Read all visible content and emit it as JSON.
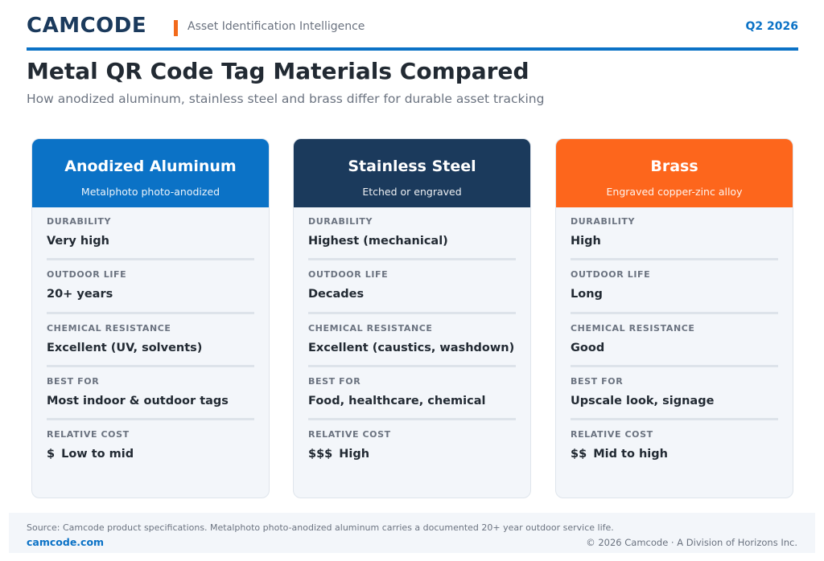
{
  "header": {
    "brand": "CAMCODE",
    "tagline": "Asset Identification Intelligence",
    "quarter": "Q2 2026",
    "accent_color": "#0b72c6",
    "brand_color": "#1b3a5c",
    "bar_color": "#f26a1b"
  },
  "page": {
    "title": "Metal QR Code Tag Materials Compared",
    "subtitle": "How anodized aluminum, stainless steel and brass differ for durable asset tracking"
  },
  "labels": {
    "durability": "DURABILITY",
    "outdoor_life": "OUTDOOR LIFE",
    "chemical_resistance": "CHEMICAL RESISTANCE",
    "best_for": "BEST FOR",
    "relative_cost": "RELATIVE COST"
  },
  "cards": [
    {
      "title": "Anodized Aluminum",
      "subtitle": "Metalphoto photo-anodized",
      "color": "#0b72c6",
      "durability": "Very high",
      "outdoor_life": "20+ years",
      "chemical_resistance": "Excellent (UV, solvents)",
      "best_for": "Most indoor & outdoor tags",
      "cost_symbol": "$",
      "cost_text": "Low to mid"
    },
    {
      "title": "Stainless Steel",
      "subtitle": "Etched or engraved",
      "color": "#1b3a5c",
      "durability": "Highest (mechanical)",
      "outdoor_life": "Decades",
      "chemical_resistance": "Excellent (caustics, washdown)",
      "best_for": "Food, healthcare, chemical",
      "cost_symbol": "$$$",
      "cost_text": "High"
    },
    {
      "title": "Brass",
      "subtitle": "Engraved copper-zinc alloy",
      "color": "#f26a1b",
      "durability": "High",
      "outdoor_life": "Long",
      "chemical_resistance": "Good",
      "best_for": "Upscale look, signage",
      "cost_symbol": "$$",
      "cost_text": "Mid to high"
    }
  ],
  "footer": {
    "source": "Source: Camcode product specifications. Metalphoto photo-anodized aluminum carries a documented 20+ year outdoor service life.",
    "site": "camcode.com",
    "copyright": "© 2026 Camcode · A Division of Horizons Inc."
  }
}
